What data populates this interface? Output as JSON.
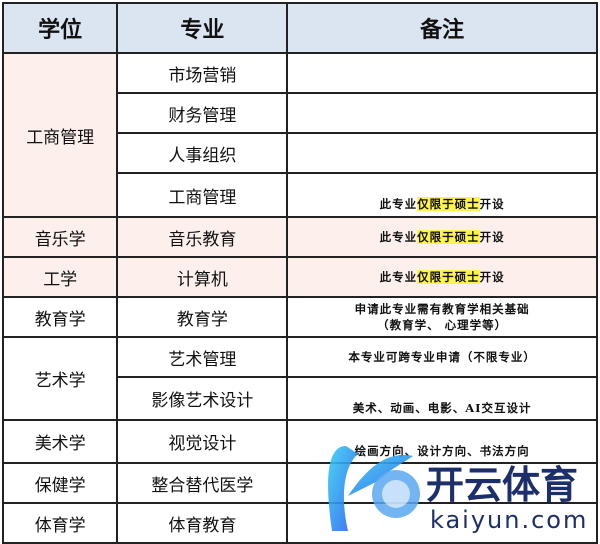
{
  "headers": [
    "学位",
    "专业",
    "备注"
  ],
  "rows": [
    {
      "degree": "工商管理",
      "majors": [
        {
          "major": "市场营销",
          "note": ""
        },
        {
          "major": "财务管理",
          "note": ""
        },
        {
          "major": "人事组织",
          "note": ""
        },
        {
          "major": "工商管理",
          "note_pre": "此专业",
          "note_hl": "仅限于硕士",
          "note_post": "开设"
        }
      ]
    },
    {
      "degree": "音乐学",
      "majors": [
        {
          "major": "音乐教育",
          "note_pre": "此专业",
          "note_hl": "仅限于硕士",
          "note_post": "开设"
        }
      ]
    },
    {
      "degree": "工学",
      "majors": [
        {
          "major": "计算机",
          "note_pre": "此专业",
          "note_hl": "仅限于硕士",
          "note_post": "开设"
        }
      ]
    },
    {
      "degree": "教育学",
      "majors": [
        {
          "major": "教育学",
          "note": "申请此专业需有教育学相关基础",
          "note2": "（教育学、 心理学等）"
        }
      ]
    },
    {
      "degree": "艺术学",
      "majors": [
        {
          "major": "艺术管理",
          "note": "本专业可跨专业申请（不限专业）"
        },
        {
          "major": "影像艺术设计",
          "note": "美术、动画、电影、AI交互设计"
        }
      ]
    },
    {
      "degree": "美术学",
      "majors": [
        {
          "major": "视觉设计",
          "note": "绘画方向、设计方向、书法方向"
        }
      ]
    },
    {
      "degree": "保健学",
      "majors": [
        {
          "major": "整合替代医学",
          "note": ""
        }
      ]
    },
    {
      "degree": "体育学",
      "majors": [
        {
          "major": "体育教育",
          "note": ""
        }
      ]
    }
  ],
  "watermark": {
    "text": "开云体育",
    "url": "kaiyun.com"
  }
}
